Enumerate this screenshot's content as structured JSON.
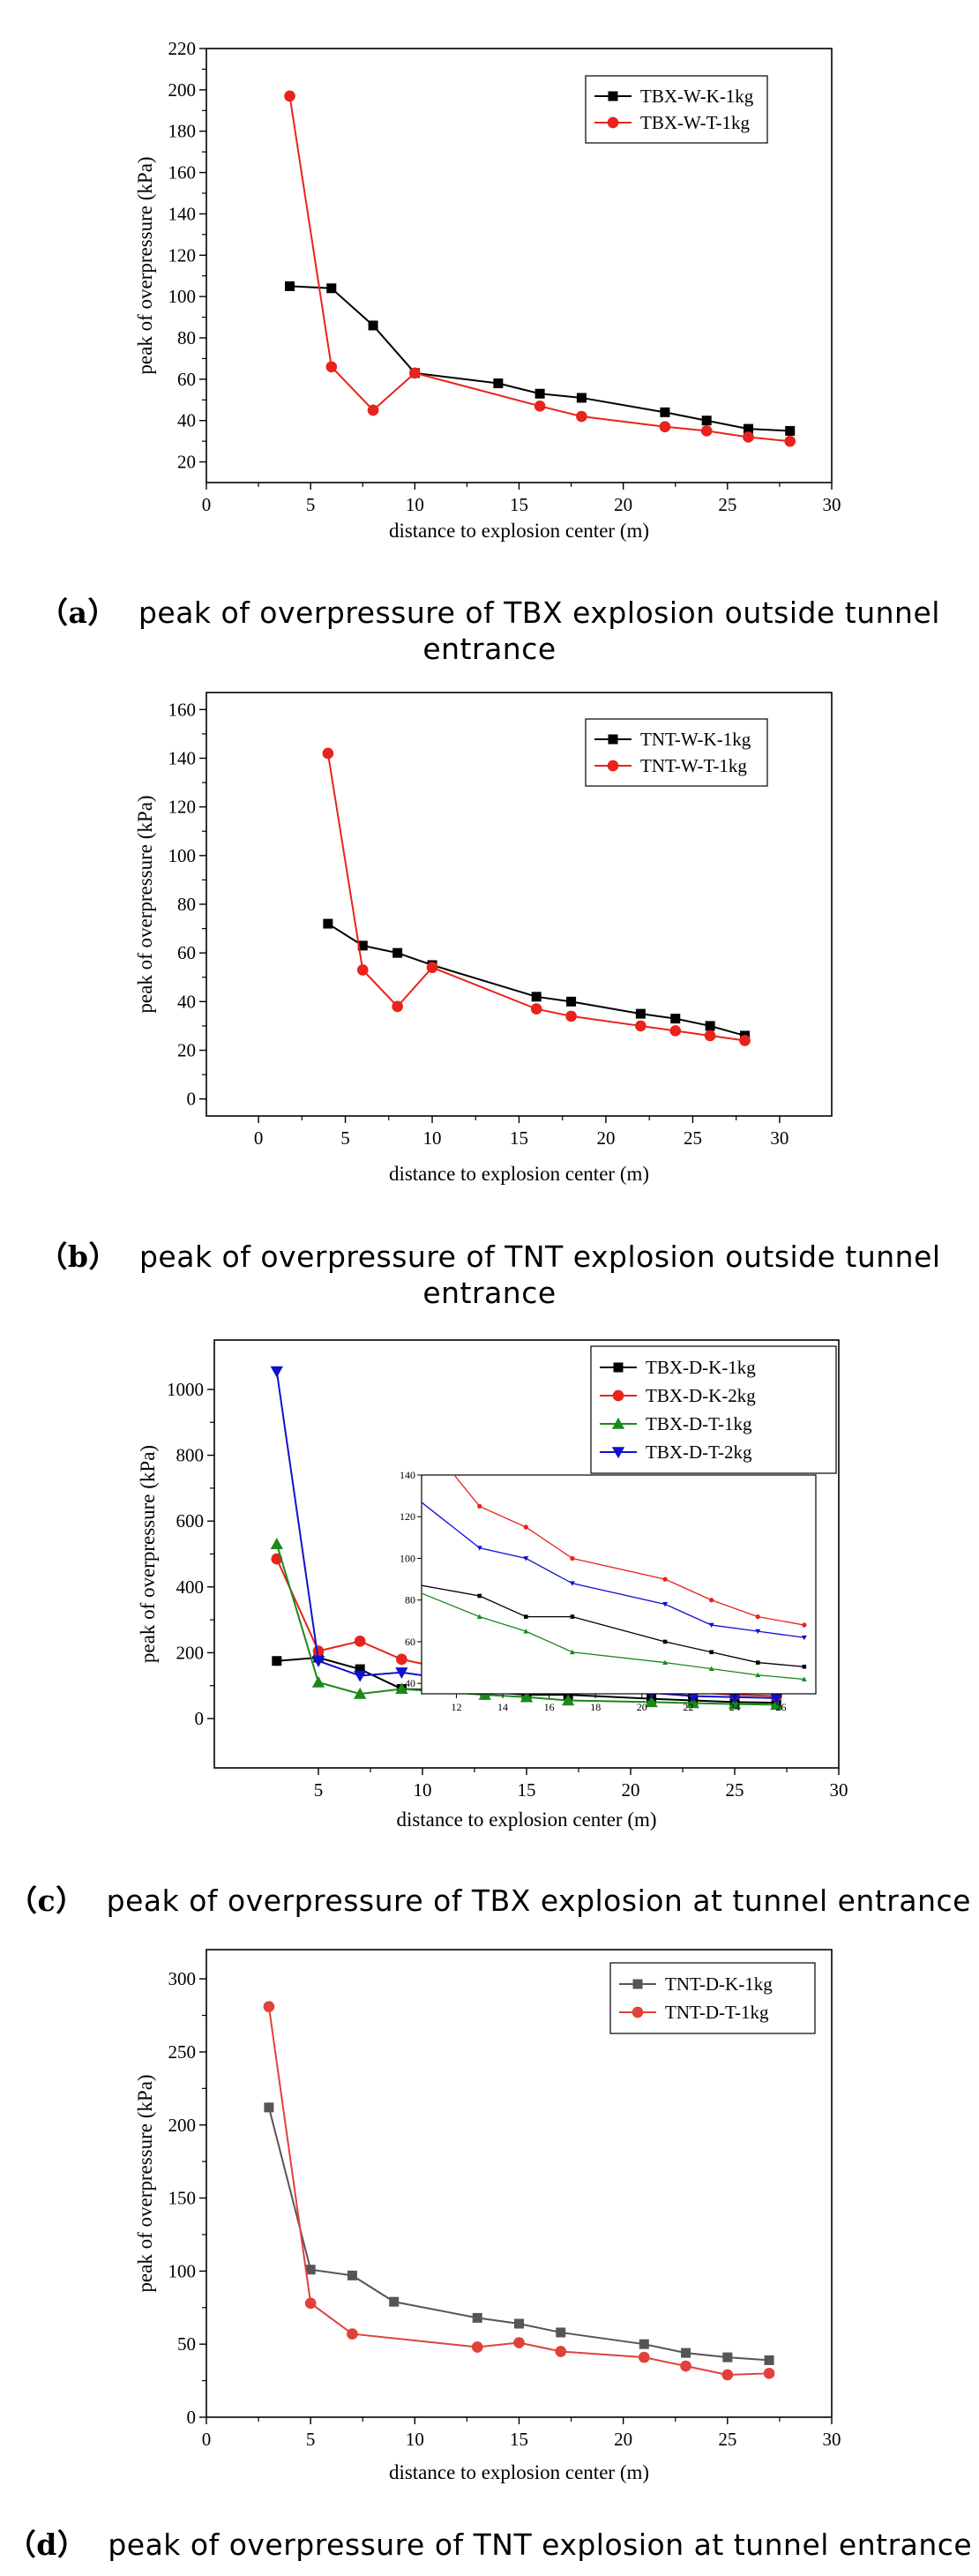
{
  "panels": [
    {
      "caption_label": "（a）",
      "caption_text": "peak of overpressure of TBX explosion outside tunnel entrance"
    },
    {
      "caption_label": "（b）",
      "caption_text": "peak of overpressure of TNT explosion outside tunnel entrance"
    },
    {
      "caption_label": "（c）",
      "caption_text": "peak of overpressure of TBX explosion at tunnel entrance"
    },
    {
      "caption_label": "（d）",
      "caption_text": "peak of overpressure of TNT explosion at tunnel entrance"
    }
  ],
  "chart_data": [
    {
      "type": "line",
      "xlabel": "distance to explosion center (m)",
      "ylabel": "peak of overpressure (kPa)",
      "xlim": [
        0,
        30
      ],
      "ylim": [
        10,
        220
      ],
      "xticks": [
        0,
        5,
        10,
        15,
        20,
        25,
        30
      ],
      "yticks": [
        20,
        40,
        60,
        80,
        100,
        120,
        140,
        160,
        180,
        200,
        220
      ],
      "legend_position": "top-right",
      "series": [
        {
          "name": "TBX-W-K-1kg",
          "color": "#000000",
          "marker": "square",
          "x": [
            4,
            6,
            8,
            10,
            14,
            16,
            18,
            22,
            24,
            26,
            28
          ],
          "y": [
            105,
            104,
            86,
            63,
            58,
            53,
            51,
            44,
            40,
            36,
            35
          ]
        },
        {
          "name": "TBX-W-T-1kg",
          "color": "#e8231c",
          "marker": "circle",
          "x": [
            4,
            6,
            8,
            10,
            16,
            18,
            22,
            24,
            26,
            28
          ],
          "y": [
            197,
            66,
            45,
            63,
            47,
            42,
            37,
            35,
            32,
            30
          ]
        }
      ]
    },
    {
      "type": "line",
      "xlabel": "distance to explosion center (m)",
      "ylabel": "peak of overpressure (kPa)",
      "xlim": [
        -3,
        33
      ],
      "ylim": [
        -7,
        167
      ],
      "xticks": [
        0,
        5,
        10,
        15,
        20,
        25,
        30
      ],
      "yticks": [
        0,
        20,
        40,
        60,
        80,
        100,
        120,
        140,
        160
      ],
      "legend_position": "top-right",
      "series": [
        {
          "name": "TNT-W-K-1kg",
          "color": "#000000",
          "marker": "square",
          "x": [
            4,
            6,
            8,
            10,
            16,
            18,
            22,
            24,
            26,
            28
          ],
          "y": [
            72,
            63,
            60,
            55,
            42,
            40,
            35,
            33,
            30,
            26
          ]
        },
        {
          "name": "TNT-W-T-1kg",
          "color": "#e8231c",
          "marker": "circle",
          "x": [
            4,
            6,
            8,
            10,
            16,
            18,
            22,
            24,
            26,
            28
          ],
          "y": [
            142,
            53,
            38,
            54,
            37,
            34,
            30,
            28,
            26,
            24
          ]
        }
      ]
    },
    {
      "type": "line",
      "xlabel": "distance to explosion center (m)",
      "ylabel": "peak of overpressure (kPa)",
      "xlim": [
        0,
        30
      ],
      "ylim": [
        -150,
        1150
      ],
      "xticks": [
        5,
        10,
        15,
        20,
        25,
        30
      ],
      "yticks": [
        0,
        200,
        400,
        600,
        800,
        1000
      ],
      "legend_position": "top-right",
      "series": [
        {
          "name": "TBX-D-K-1kg",
          "color": "#000000",
          "marker": "square",
          "x": [
            3,
            5,
            7,
            9,
            13,
            15,
            17,
            21,
            23,
            25,
            27
          ],
          "y": [
            175,
            185,
            150,
            90,
            82,
            72,
            72,
            60,
            55,
            50,
            48
          ]
        },
        {
          "name": "TBX-D-K-2kg",
          "color": "#e8231c",
          "marker": "circle",
          "x": [
            3,
            5,
            7,
            9,
            13,
            15,
            17,
            21,
            23,
            25,
            27
          ],
          "y": [
            485,
            205,
            235,
            180,
            125,
            115,
            100,
            90,
            80,
            72,
            68
          ]
        },
        {
          "name": "TBX-D-T-1kg",
          "color": "#1a8a1a",
          "marker": "triangle-up",
          "x": [
            3,
            5,
            7,
            9,
            13,
            15,
            17,
            21,
            23,
            25,
            27
          ],
          "y": [
            530,
            110,
            75,
            90,
            72,
            65,
            55,
            50,
            47,
            44,
            42
          ]
        },
        {
          "name": "TBX-D-T-2kg",
          "color": "#1010d0",
          "marker": "triangle-down",
          "x": [
            3,
            5,
            7,
            9,
            13,
            15,
            17,
            21,
            23,
            25,
            27
          ],
          "y": [
            1055,
            175,
            130,
            140,
            105,
            100,
            88,
            78,
            68,
            65,
            62
          ]
        }
      ],
      "inset": {
        "xlim": [
          10.5,
          27.5
        ],
        "ylim": [
          35,
          140
        ],
        "xticks": [
          12,
          14,
          16,
          18,
          20,
          22,
          24,
          26
        ],
        "yticks": [
          40,
          60,
          80,
          100,
          120,
          140
        ]
      }
    },
    {
      "type": "line",
      "xlabel": "distance to explosion center (m)",
      "ylabel": "peak of overpressure (kPa)",
      "xlim": [
        0,
        30
      ],
      "ylim": [
        0,
        320
      ],
      "xticks": [
        0,
        5,
        10,
        15,
        20,
        25,
        30
      ],
      "yticks": [
        0,
        50,
        100,
        150,
        200,
        250,
        300
      ],
      "legend_position": "top-right",
      "series": [
        {
          "name": "TNT-D-K-1kg",
          "color": "#555555",
          "marker": "square",
          "x": [
            3,
            5,
            7,
            9,
            13,
            15,
            17,
            21,
            23,
            25,
            27
          ],
          "y": [
            212,
            101,
            97,
            79,
            68,
            64,
            58,
            50,
            44,
            41,
            39
          ]
        },
        {
          "name": "TNT-D-T-1kg",
          "color": "#e0413a",
          "marker": "circle",
          "x": [
            3,
            5,
            7,
            13,
            15,
            17,
            21,
            23,
            25,
            27
          ],
          "y": [
            281,
            78,
            57,
            48,
            51,
            45,
            41,
            35,
            29,
            30
          ]
        }
      ]
    }
  ]
}
